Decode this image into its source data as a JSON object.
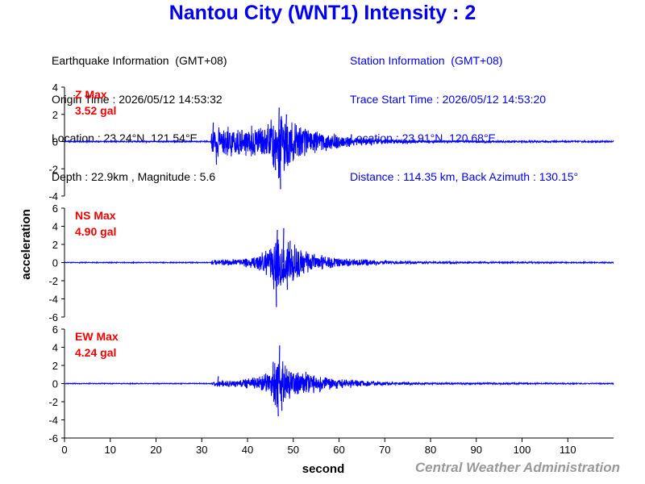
{
  "header": {
    "title": "Nantou City (WNT1) Intensity : 2"
  },
  "earthquake_info": {
    "heading": "Earthquake Information  (GMT+08)",
    "origin_time": "Origin Time : 2026/05/12 14:53:32",
    "location": "Location : 23.24°N, 121.54°E",
    "depth_magnitude": "Depth : 22.9km , Magnitude : 5.6"
  },
  "station_info": {
    "heading": "Station Information  (GMT+08)",
    "trace_start": "Trace Start Time : 2026/05/12 14:53:20",
    "location": "Location : 23.91°N, 120.68°E",
    "distance_azimuth": "Distance : 114.35 km, Back Azimuth : 130.15°"
  },
  "footer": {
    "credit": "Central Weather Administration"
  },
  "colors": {
    "title": "#0000ee",
    "station_text": "#0000ee",
    "trace": "#0000ff",
    "max_label": "#ee0000",
    "credit": "#999999"
  },
  "chart_data": {
    "type": "line",
    "xlabel": "second",
    "ylabel": "acceleration",
    "xlim": [
      0,
      120
    ],
    "xticks": [
      0,
      10,
      20,
      30,
      40,
      50,
      60,
      70,
      80,
      90,
      100,
      110
    ],
    "grid": false,
    "panels": [
      {
        "name": "Z",
        "max_label": "Z Max",
        "max_value": "3.52 gal",
        "ylim": [
          -4,
          4
        ],
        "yticks": [
          -4,
          -2,
          0,
          2,
          4
        ],
        "envelope": [
          [
            0,
            0.05
          ],
          [
            32,
            0.05
          ],
          [
            32.2,
            1.2
          ],
          [
            40,
            1.2
          ],
          [
            44,
            1.4
          ],
          [
            46,
            2.3
          ],
          [
            47,
            3.4
          ],
          [
            48,
            2.4
          ],
          [
            50,
            2.0
          ],
          [
            52,
            1.4
          ],
          [
            55,
            0.9
          ],
          [
            60,
            0.55
          ],
          [
            65,
            0.35
          ],
          [
            70,
            0.22
          ],
          [
            80,
            0.1
          ],
          [
            120,
            0.06
          ]
        ],
        "peaks": [
          [
            46.8,
            2.5
          ],
          [
            47.1,
            -3.5
          ],
          [
            48.4,
            2.0
          ],
          [
            46.0,
            -2.1
          ],
          [
            32.4,
            1.4
          ],
          [
            33.1,
            -1.7
          ]
        ]
      },
      {
        "name": "NS",
        "max_label": "NS Max",
        "max_value": "4.90 gal",
        "ylim": [
          -6,
          6
        ],
        "yticks": [
          -6,
          -4,
          -2,
          0,
          2,
          4,
          6
        ],
        "envelope": [
          [
            0,
            0.05
          ],
          [
            32,
            0.05
          ],
          [
            32.2,
            0.35
          ],
          [
            38,
            0.4
          ],
          [
            42,
            0.9
          ],
          [
            45,
            1.8
          ],
          [
            46,
            3.6
          ],
          [
            47,
            3.8
          ],
          [
            48,
            3.2
          ],
          [
            49,
            2.5
          ],
          [
            51,
            2.0
          ],
          [
            55,
            1.0
          ],
          [
            60,
            0.6
          ],
          [
            65,
            0.4
          ],
          [
            70,
            0.22
          ],
          [
            80,
            0.12
          ],
          [
            120,
            0.06
          ]
        ],
        "peaks": [
          [
            46.2,
            -4.9
          ],
          [
            46.4,
            3.6
          ],
          [
            47.8,
            3.8
          ],
          [
            48.6,
            -3.0
          ],
          [
            49.2,
            2.4
          ]
        ]
      },
      {
        "name": "EW",
        "max_label": "EW Max",
        "max_value": "4.24 gal",
        "ylim": [
          -6,
          6
        ],
        "yticks": [
          -6,
          -4,
          -2,
          0,
          2,
          4,
          6
        ],
        "envelope": [
          [
            0,
            0.05
          ],
          [
            32,
            0.05
          ],
          [
            33,
            0.4
          ],
          [
            38,
            0.45
          ],
          [
            43,
            0.9
          ],
          [
            45,
            1.7
          ],
          [
            46,
            3.0
          ],
          [
            47,
            3.2
          ],
          [
            48,
            2.4
          ],
          [
            50,
            1.8
          ],
          [
            55,
            1.1
          ],
          [
            60,
            0.6
          ],
          [
            65,
            0.4
          ],
          [
            70,
            0.22
          ],
          [
            80,
            0.12
          ],
          [
            120,
            0.06
          ]
        ],
        "peaks": [
          [
            46.9,
            4.2
          ],
          [
            46.6,
            -3.6
          ],
          [
            47.4,
            -3.0
          ],
          [
            33.5,
            0.8
          ],
          [
            45.5,
            2.4
          ]
        ]
      }
    ]
  }
}
